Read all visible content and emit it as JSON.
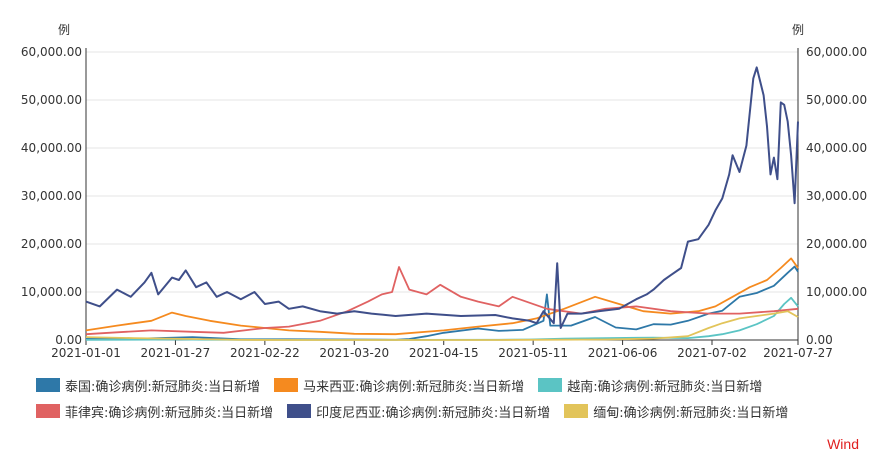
{
  "chart_data": {
    "type": "line",
    "y_unit_left": "例",
    "y_unit_right": "例",
    "ylim": [
      0,
      60000
    ],
    "y_ticks": [
      "0.00",
      "10,000.00",
      "20,000.00",
      "30,000.00",
      "40,000.00",
      "50,000.00",
      "60,000.00"
    ],
    "y_tick_values": [
      0,
      10000,
      20000,
      30000,
      40000,
      50000,
      60000
    ],
    "xlim": [
      "2021-01-01",
      "2021-07-27"
    ],
    "x_ticks": [
      "2021-01-01",
      "2021-01-27",
      "2021-02-22",
      "2021-03-20",
      "2021-04-15",
      "2021-05-11",
      "2021-06-06",
      "2021-07-02",
      "2021-07-27"
    ],
    "grid": true,
    "legend_position": "bottom",
    "source": "Wind",
    "series": [
      {
        "name": "泰国:确诊病例:新冠肺炎:当日新增",
        "color": "#2e78a8",
        "points": [
          [
            "2021-01-01",
            300
          ],
          [
            "2021-01-15",
            250
          ],
          [
            "2021-02-01",
            600
          ],
          [
            "2021-02-15",
            150
          ],
          [
            "2021-03-01",
            150
          ],
          [
            "2021-03-20",
            100
          ],
          [
            "2021-04-01",
            50
          ],
          [
            "2021-04-05",
            200
          ],
          [
            "2021-04-10",
            800
          ],
          [
            "2021-04-15",
            1500
          ],
          [
            "2021-04-25",
            2400
          ],
          [
            "2021-05-01",
            1900
          ],
          [
            "2021-05-08",
            2100
          ],
          [
            "2021-05-14",
            4000
          ],
          [
            "2021-05-15",
            9500
          ],
          [
            "2021-05-16",
            3000
          ],
          [
            "2021-05-22",
            3000
          ],
          [
            "2021-05-29",
            4800
          ],
          [
            "2021-06-04",
            2600
          ],
          [
            "2021-06-10",
            2200
          ],
          [
            "2021-06-15",
            3300
          ],
          [
            "2021-06-20",
            3200
          ],
          [
            "2021-06-25",
            4000
          ],
          [
            "2021-07-01",
            5500
          ],
          [
            "2021-07-05",
            6100
          ],
          [
            "2021-07-10",
            9000
          ],
          [
            "2021-07-15",
            9800
          ],
          [
            "2021-07-20",
            11300
          ],
          [
            "2021-07-24",
            14000
          ],
          [
            "2021-07-26",
            15300
          ],
          [
            "2021-07-27",
            14200
          ]
        ]
      },
      {
        "name": "马来西亚:确诊病例:新冠肺炎:当日新增",
        "color": "#f58a1f",
        "points": [
          [
            "2021-01-01",
            2000
          ],
          [
            "2021-01-10",
            3000
          ],
          [
            "2021-01-20",
            4000
          ],
          [
            "2021-01-26",
            5700
          ],
          [
            "2021-01-30",
            5000
          ],
          [
            "2021-02-06",
            4000
          ],
          [
            "2021-02-15",
            3000
          ],
          [
            "2021-02-22",
            2500
          ],
          [
            "2021-03-01",
            2000
          ],
          [
            "2021-03-10",
            1700
          ],
          [
            "2021-03-20",
            1300
          ],
          [
            "2021-04-01",
            1200
          ],
          [
            "2021-04-15",
            2000
          ],
          [
            "2021-04-25",
            2800
          ],
          [
            "2021-05-05",
            3500
          ],
          [
            "2021-05-12",
            4500
          ],
          [
            "2021-05-20",
            6500
          ],
          [
            "2021-05-29",
            9000
          ],
          [
            "2021-06-05",
            7500
          ],
          [
            "2021-06-12",
            6000
          ],
          [
            "2021-06-20",
            5500
          ],
          [
            "2021-06-28",
            6000
          ],
          [
            "2021-07-03",
            7000
          ],
          [
            "2021-07-08",
            9000
          ],
          [
            "2021-07-13",
            11000
          ],
          [
            "2021-07-18",
            12500
          ],
          [
            "2021-07-22",
            15000
          ],
          [
            "2021-07-25",
            17000
          ],
          [
            "2021-07-27",
            15000
          ]
        ]
      },
      {
        "name": "越南:确诊病例:新冠肺炎:当日新增",
        "color": "#5bc4c4",
        "points": [
          [
            "2021-01-01",
            50
          ],
          [
            "2021-01-28",
            100
          ],
          [
            "2021-02-05",
            60
          ],
          [
            "2021-03-01",
            20
          ],
          [
            "2021-04-01",
            20
          ],
          [
            "2021-05-01",
            50
          ],
          [
            "2021-05-10",
            100
          ],
          [
            "2021-05-20",
            300
          ],
          [
            "2021-06-01",
            400
          ],
          [
            "2021-06-15",
            500
          ],
          [
            "2021-06-25",
            400
          ],
          [
            "2021-07-01",
            800
          ],
          [
            "2021-07-05",
            1200
          ],
          [
            "2021-07-10",
            2000
          ],
          [
            "2021-07-15",
            3300
          ],
          [
            "2021-07-20",
            5000
          ],
          [
            "2021-07-23",
            7500
          ],
          [
            "2021-07-25",
            8800
          ],
          [
            "2021-07-27",
            7000
          ]
        ]
      },
      {
        "name": "菲律宾:确诊病例:新冠肺炎:当日新增",
        "color": "#e06262",
        "points": [
          [
            "2021-01-01",
            1200
          ],
          [
            "2021-01-10",
            1600
          ],
          [
            "2021-01-20",
            2000
          ],
          [
            "2021-02-01",
            1700
          ],
          [
            "2021-02-10",
            1500
          ],
          [
            "2021-02-22",
            2500
          ],
          [
            "2021-03-01",
            2800
          ],
          [
            "2021-03-10",
            4000
          ],
          [
            "2021-03-18",
            6000
          ],
          [
            "2021-03-24",
            8000
          ],
          [
            "2021-03-28",
            9500
          ],
          [
            "2021-03-31",
            10000
          ],
          [
            "2021-04-02",
            15200
          ],
          [
            "2021-04-05",
            10500
          ],
          [
            "2021-04-10",
            9500
          ],
          [
            "2021-04-14",
            11500
          ],
          [
            "2021-04-20",
            9000
          ],
          [
            "2021-04-25",
            8000
          ],
          [
            "2021-05-01",
            7000
          ],
          [
            "2021-05-05",
            9000
          ],
          [
            "2021-05-15",
            6500
          ],
          [
            "2021-05-25",
            5500
          ],
          [
            "2021-06-01",
            6500
          ],
          [
            "2021-06-10",
            7000
          ],
          [
            "2021-06-20",
            6000
          ],
          [
            "2021-07-01",
            5500
          ],
          [
            "2021-07-10",
            5500
          ],
          [
            "2021-07-20",
            6000
          ],
          [
            "2021-07-27",
            6500
          ]
        ]
      },
      {
        "name": "印度尼西亚:确诊病例:新冠肺炎:当日新增",
        "color": "#3f4f8a",
        "points": [
          [
            "2021-01-01",
            8000
          ],
          [
            "2021-01-05",
            7000
          ],
          [
            "2021-01-10",
            10500
          ],
          [
            "2021-01-14",
            9000
          ],
          [
            "2021-01-18",
            12000
          ],
          [
            "2021-01-20",
            14000
          ],
          [
            "2021-01-22",
            9500
          ],
          [
            "2021-01-26",
            13000
          ],
          [
            "2021-01-28",
            12500
          ],
          [
            "2021-01-30",
            14500
          ],
          [
            "2021-02-02",
            11000
          ],
          [
            "2021-02-05",
            12000
          ],
          [
            "2021-02-08",
            9000
          ],
          [
            "2021-02-11",
            10000
          ],
          [
            "2021-02-15",
            8500
          ],
          [
            "2021-02-19",
            10000
          ],
          [
            "2021-02-22",
            7500
          ],
          [
            "2021-02-26",
            8000
          ],
          [
            "2021-03-01",
            6500
          ],
          [
            "2021-03-05",
            7000
          ],
          [
            "2021-03-10",
            6000
          ],
          [
            "2021-03-15",
            5500
          ],
          [
            "2021-03-20",
            6000
          ],
          [
            "2021-03-25",
            5500
          ],
          [
            "2021-04-01",
            5000
          ],
          [
            "2021-04-10",
            5500
          ],
          [
            "2021-04-20",
            5000
          ],
          [
            "2021-04-30",
            5200
          ],
          [
            "2021-05-05",
            4500
          ],
          [
            "2021-05-10",
            4000
          ],
          [
            "2021-05-12",
            3500
          ],
          [
            "2021-05-14",
            6000
          ],
          [
            "2021-05-17",
            3500
          ],
          [
            "2021-05-18",
            16000
          ],
          [
            "2021-05-19",
            2500
          ],
          [
            "2021-05-21",
            5500
          ],
          [
            "2021-05-25",
            5500
          ],
          [
            "2021-05-30",
            6000
          ],
          [
            "2021-06-05",
            6500
          ],
          [
            "2021-06-10",
            8500
          ],
          [
            "2021-06-13",
            9500
          ],
          [
            "2021-06-15",
            10500
          ],
          [
            "2021-06-18",
            12500
          ],
          [
            "2021-06-20",
            13500
          ],
          [
            "2021-06-23",
            15000
          ],
          [
            "2021-06-25",
            20500
          ],
          [
            "2021-06-28",
            21000
          ],
          [
            "2021-07-01",
            24000
          ],
          [
            "2021-07-03",
            27000
          ],
          [
            "2021-07-05",
            29500
          ],
          [
            "2021-07-07",
            34500
          ],
          [
            "2021-07-08",
            38500
          ],
          [
            "2021-07-10",
            35000
          ],
          [
            "2021-07-12",
            40500
          ],
          [
            "2021-07-14",
            54500
          ],
          [
            "2021-07-15",
            56800
          ],
          [
            "2021-07-17",
            51000
          ],
          [
            "2021-07-18",
            44500
          ],
          [
            "2021-07-19",
            34500
          ],
          [
            "2021-07-20",
            38000
          ],
          [
            "2021-07-21",
            33500
          ],
          [
            "2021-07-22",
            49500
          ],
          [
            "2021-07-23",
            49000
          ],
          [
            "2021-07-24",
            45500
          ],
          [
            "2021-07-25",
            38500
          ],
          [
            "2021-07-26",
            28500
          ],
          [
            "2021-07-27",
            45500
          ]
        ]
      },
      {
        "name": "缅甸:确诊病例:新冠肺炎:当日新增",
        "color": "#e2c45a",
        "points": [
          [
            "2021-01-01",
            600
          ],
          [
            "2021-01-15",
            400
          ],
          [
            "2021-02-01",
            200
          ],
          [
            "2021-02-15",
            20
          ],
          [
            "2021-03-01",
            10
          ],
          [
            "2021-04-01",
            10
          ],
          [
            "2021-05-01",
            10
          ],
          [
            "2021-06-01",
            100
          ],
          [
            "2021-06-15",
            300
          ],
          [
            "2021-06-25",
            800
          ],
          [
            "2021-07-01",
            2500
          ],
          [
            "2021-07-05",
            3500
          ],
          [
            "2021-07-10",
            4500
          ],
          [
            "2021-07-15",
            5000
          ],
          [
            "2021-07-20",
            5500
          ],
          [
            "2021-07-24",
            6000
          ],
          [
            "2021-07-27",
            4800
          ]
        ]
      }
    ]
  }
}
